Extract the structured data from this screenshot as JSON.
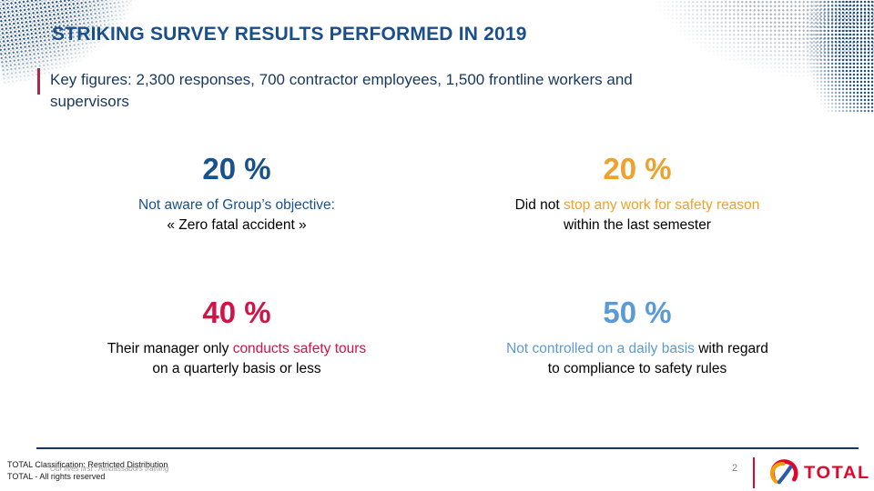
{
  "title": "STRIKING SURVEY RESULTS PERFORMED IN 2019",
  "key_figures": {
    "lines": [
      "Key figures: 2,300 responses, 700 contractor employees, 1,500 frontline workers and",
      "supervisors"
    ]
  },
  "stats": [
    {
      "id": "not-aware-objective",
      "value": "20 %",
      "color": "#17518e",
      "lines": [
        [
          {
            "text": "Not aware of Group’s objective:",
            "accent": true
          }
        ],
        [
          {
            "text": "« Zero fatal accident »",
            "accent": false
          }
        ]
      ]
    },
    {
      "id": "did-not-stop-work",
      "value": "20 %",
      "color": "#efa12d",
      "lines": [
        [
          {
            "text": "Did not ",
            "accent": false
          },
          {
            "text": "stop any work for safety reason",
            "accent": true
          }
        ],
        [
          {
            "text": "within the last semester",
            "accent": false
          }
        ]
      ]
    },
    {
      "id": "manager-safety-tours",
      "value": "40 %",
      "color": "#d31245",
      "lines": [
        [
          {
            "text": "Their manager only ",
            "accent": false
          },
          {
            "text": "conducts safety tours",
            "accent": true
          }
        ],
        [
          {
            "text": "on a quarterly basis or less",
            "accent": false
          }
        ]
      ]
    },
    {
      "id": "not-controlled-daily",
      "value": "50 %",
      "color": "#5b9bd5",
      "lines": [
        [
          {
            "text": "Not controlled on a daily basis",
            "accent": true
          },
          {
            "text": " with regard",
            "accent": false
          }
        ],
        [
          {
            "text": "to compliance to safety rules",
            "accent": false
          }
        ]
      ]
    }
  ],
  "footer": {
    "classification": "TOTAL Classification: Restricted Distribution",
    "overlay": "Our lives first : Ambassadors training",
    "rights": "TOTAL - All rights reserved",
    "page_number": "2"
  },
  "logo": {
    "wordmark": "TOTAL"
  },
  "colors": {
    "title": "#1a4f8c",
    "navy_text": "#17375d",
    "keyline": "#b02645",
    "rule": "#17365d",
    "page_gray": "#7f7f7f",
    "overlay_gray": "#9b9b9b",
    "logo_red": "#e1062c",
    "logo_orange": "#f6a000",
    "logo_blue": "#2a5caa",
    "dots_navy": "#24507f",
    "dots_gray": "#a9b3bf"
  }
}
